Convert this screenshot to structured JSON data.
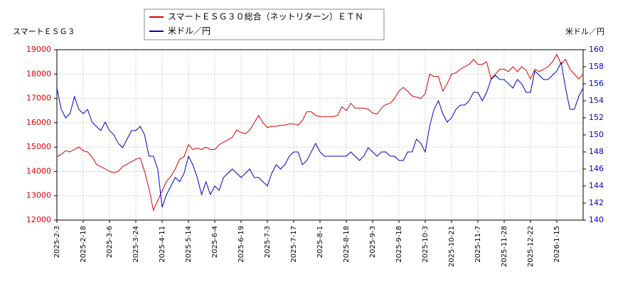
{
  "chart_data": {
    "type": "line",
    "y_label": "スマートＥＳＧ３",
    "y2_label": "米ドル／円",
    "categories": [
      "2025-2-3",
      null,
      null,
      null,
      null,
      null,
      "2025-2-18",
      null,
      null,
      null,
      null,
      null,
      "2025-3-6",
      null,
      null,
      null,
      null,
      null,
      "2025-3-24",
      null,
      null,
      null,
      null,
      null,
      "2025-4-11",
      null,
      null,
      null,
      null,
      null,
      "2025-5-14",
      null,
      null,
      null,
      null,
      null,
      "2025-6-4",
      null,
      null,
      null,
      null,
      null,
      "2025-6-19",
      null,
      null,
      null,
      null,
      null,
      "2025-7-3",
      null,
      null,
      null,
      null,
      null,
      "2025-7-17",
      null,
      null,
      null,
      null,
      null,
      "2025-8-1",
      null,
      null,
      null,
      null,
      null,
      "2025-8-18",
      null,
      null,
      null,
      null,
      null,
      "2025-9-3",
      null,
      null,
      null,
      null,
      null,
      "2025-9-18",
      null,
      null,
      null,
      null,
      null,
      "2025-10-3",
      null,
      null,
      null,
      null,
      null,
      "2025-10-21",
      null,
      null,
      null,
      null,
      null,
      "2025-11-7",
      null,
      null,
      null,
      null,
      null,
      "2025-11-28",
      null,
      null,
      null,
      null,
      null,
      "2025-12-22",
      null,
      null,
      null,
      null,
      null,
      "2026-1-15",
      null,
      null,
      null,
      null,
      null,
      null
    ],
    "series": [
      {
        "name": "スマートＥＳＧ３０総合（ネットリターン）ＥＴＮ",
        "color": "#dd0000",
        "values": [
          14600,
          14700,
          14850,
          14800,
          14900,
          15000,
          14850,
          14800,
          14600,
          14300,
          14200,
          14100,
          14000,
          13950,
          14000,
          14200,
          14300,
          14400,
          14500,
          14550,
          14000,
          13300,
          12400,
          12800,
          13200,
          13600,
          13800,
          14100,
          14500,
          14600,
          15100,
          14900,
          14950,
          14900,
          15000,
          14900,
          14900,
          15100,
          15200,
          15300,
          15400,
          15700,
          15600,
          15550,
          15700,
          16000,
          16300,
          16000,
          15800,
          15850,
          15850,
          15900,
          15900,
          15950,
          15950,
          15900,
          16100,
          16450,
          16450,
          16300,
          16250,
          16250,
          16250,
          16250,
          16300,
          16650,
          16500,
          16800,
          16600,
          16600,
          16600,
          16550,
          16400,
          16350,
          16600,
          16750,
          16800,
          17000,
          17300,
          17450,
          17300,
          17100,
          17050,
          17000,
          17200,
          18000,
          17900,
          17900,
          17300,
          17600,
          18000,
          18050,
          18200,
          18300,
          18400,
          18600,
          18400,
          18400,
          18500,
          17800,
          18000,
          18200,
          18200,
          18100,
          18300,
          18100,
          18300,
          18150,
          17800,
          18200,
          18100,
          18200,
          18300,
          18500,
          18800,
          18400,
          18600,
          18200,
          18000,
          17800,
          18000
        ]
      },
      {
        "name": "米ドル／円",
        "color": "#0000cc",
        "axis": "y2",
        "values": [
          155.5,
          153,
          152,
          152.5,
          154.5,
          153,
          152.5,
          153,
          151.5,
          151,
          150.5,
          151.5,
          150.5,
          150,
          149,
          148.5,
          149.5,
          150.5,
          150.5,
          151,
          150,
          147.5,
          147.5,
          146,
          141.5,
          143,
          144,
          145,
          144.5,
          145.5,
          147.5,
          146.5,
          145,
          143,
          144.5,
          143,
          144,
          143.5,
          145,
          145.5,
          146,
          145.5,
          145,
          145.5,
          146,
          145,
          145,
          144.5,
          144,
          145.5,
          146.5,
          146,
          146.5,
          147.5,
          148,
          148,
          146.5,
          147,
          148,
          149,
          148,
          147.5,
          147.5,
          147.5,
          147.5,
          147.5,
          147.5,
          148,
          147.5,
          147,
          147.5,
          148.5,
          148,
          147.5,
          148,
          148,
          147.5,
          147.5,
          147,
          147,
          148,
          148,
          149.5,
          149,
          148,
          151,
          153,
          154,
          152.5,
          151.5,
          152,
          153,
          153.5,
          153.5,
          154,
          155,
          155,
          154,
          155,
          156.5,
          157,
          156.5,
          156.5,
          156,
          155.5,
          156.5,
          156,
          155,
          155,
          157.5,
          157,
          156.5,
          156.5,
          157,
          157.5,
          158.5,
          155.5,
          153,
          153,
          154.5,
          155.5
        ]
      }
    ],
    "ylim": [
      12000,
      19000
    ],
    "yticks": [
      12000,
      13000,
      14000,
      15000,
      16000,
      17000,
      18000,
      19000
    ],
    "y2lim": [
      140,
      160
    ],
    "y2ticks": [
      140,
      142,
      144,
      146,
      148,
      150,
      152,
      154,
      156,
      158,
      160
    ],
    "grid": true
  }
}
